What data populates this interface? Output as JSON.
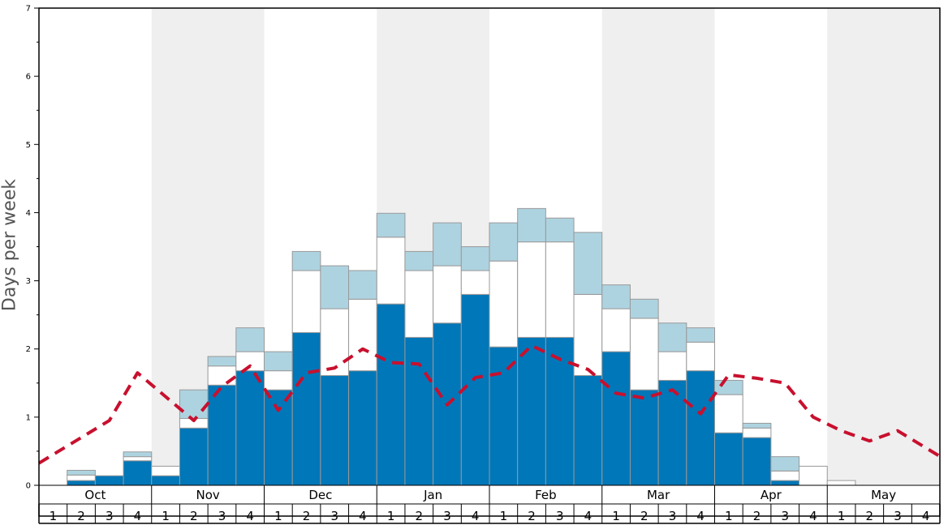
{
  "chart_data": {
    "type": "bar",
    "stacked": true,
    "ylabel": "Days per week",
    "xlabel": "",
    "title": "",
    "ylim": [
      0,
      7
    ],
    "yticks": [
      "0",
      "1",
      "2",
      "3",
      "4",
      "5",
      "6",
      "7"
    ],
    "months": [
      "Oct",
      "Nov",
      "Dec",
      "Jan",
      "Feb",
      "Mar",
      "Apr",
      "May"
    ],
    "week_labels": [
      "1",
      "2",
      "3",
      "4"
    ],
    "shaded_months": [
      "Nov",
      "Jan",
      "Mar",
      "May"
    ],
    "grid": false,
    "colors": {
      "dark_segment": "#0077b8",
      "white_segment": "#ffffff",
      "light_segment": "#aed3e0",
      "bar_border": "#999999",
      "line": "#c8102e",
      "shade": "#efefef"
    },
    "series": [
      {
        "values": [
          0,
          0.07,
          0.14,
          0.36,
          0.14,
          0.84,
          1.47,
          1.68,
          1.4,
          2.24,
          1.61,
          1.68,
          2.66,
          2.17,
          2.38,
          2.8,
          2.03,
          2.17,
          2.17,
          1.61,
          1.96,
          1.4,
          1.54,
          1.68,
          0.77,
          0.7,
          0.07,
          0,
          0,
          0,
          0,
          0
        ]
      },
      {
        "values": [
          0,
          0.08,
          0,
          0.06,
          0.14,
          0.14,
          0.28,
          0.28,
          0.28,
          0.91,
          0.98,
          1.05,
          0.98,
          0.98,
          0.84,
          0.35,
          1.26,
          1.4,
          1.4,
          1.19,
          0.63,
          1.05,
          0.42,
          0.42,
          0.56,
          0.14,
          0.14,
          0.28,
          0.07,
          0,
          0,
          0
        ]
      },
      {
        "values": [
          0,
          0.07,
          0,
          0.07,
          0,
          0.42,
          0.14,
          0.35,
          0.28,
          0.28,
          0.63,
          0.42,
          0.35,
          0.28,
          0.63,
          0.35,
          0.56,
          0.49,
          0.35,
          0.91,
          0.35,
          0.28,
          0.42,
          0.21,
          0.21,
          0.07,
          0.21,
          0,
          0,
          0,
          0,
          0
        ]
      }
    ],
    "line_values": [
      0.45,
      0.7,
      0.95,
      1.65,
      1.3,
      0.95,
      1.45,
      1.75,
      1.1,
      1.65,
      1.72,
      2.0,
      1.8,
      1.78,
      1.18,
      1.58,
      1.65,
      2.05,
      1.85,
      1.7,
      1.35,
      1.28,
      1.4,
      1.05,
      1.62,
      1.57,
      1.5,
      1.0,
      0.8,
      0.65,
      0.8,
      0.55
    ]
  }
}
